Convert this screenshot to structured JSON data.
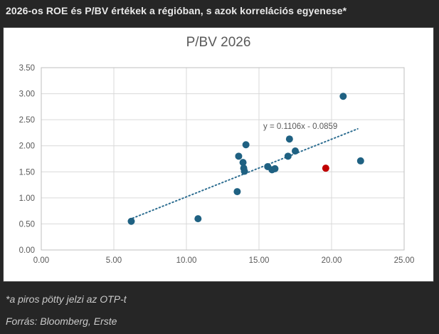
{
  "page": {
    "title": "2026-os ROE és P/BV értékek a régióban, s azok korrelációs egyenese*",
    "footnote": "*a piros pötty jelzi az OTP-t",
    "source": "Forrás: Bloomberg, Erste"
  },
  "colors": {
    "background": "#262626",
    "card": "#ffffff",
    "chart_text": "#595959",
    "gridline": "#d9d9d9",
    "plot_border": "#bfbfbf",
    "point_blue": "#1f6182",
    "trendline_blue": "#2e6e91",
    "point_red": "#c00000"
  },
  "chart_data": {
    "type": "scatter",
    "title": "P/BV 2026",
    "xlabel": "",
    "ylabel": "",
    "xlim": [
      0,
      25
    ],
    "ylim": [
      0,
      3.5
    ],
    "x_ticks": [
      {
        "value": 0,
        "label": "0.00"
      },
      {
        "value": 5,
        "label": "5.00"
      },
      {
        "value": 10,
        "label": "10.00"
      },
      {
        "value": 15,
        "label": "15.00"
      },
      {
        "value": 20,
        "label": "20.00"
      },
      {
        "value": 25,
        "label": "25.00"
      }
    ],
    "y_ticks": [
      {
        "value": 0,
        "label": "0.00"
      },
      {
        "value": 0.5,
        "label": "0.50"
      },
      {
        "value": 1,
        "label": "1.00"
      },
      {
        "value": 1.5,
        "label": "1.50"
      },
      {
        "value": 2,
        "label": "2.00"
      },
      {
        "value": 2.5,
        "label": "2.50"
      },
      {
        "value": 3,
        "label": "3.00"
      },
      {
        "value": 3.5,
        "label": "3.50"
      }
    ],
    "grid": true,
    "legend": "none",
    "points": [
      [
        6.2,
        0.55
      ],
      [
        10.8,
        0.6
      ],
      [
        13.5,
        1.12
      ],
      [
        13.6,
        1.8
      ],
      [
        13.9,
        1.68
      ],
      [
        13.95,
        1.57
      ],
      [
        14.0,
        1.51
      ],
      [
        14.1,
        2.02
      ],
      [
        15.6,
        1.6
      ],
      [
        15.9,
        1.54
      ],
      [
        16.1,
        1.56
      ],
      [
        17.0,
        1.8
      ],
      [
        17.1,
        2.13
      ],
      [
        17.5,
        1.9
      ],
      [
        20.8,
        2.95
      ],
      [
        22.0,
        1.71
      ]
    ],
    "otp_point": [
      19.6,
      1.57
    ],
    "trendline": {
      "label": "y = 0.1106x - 0.0859",
      "slope": 0.1106,
      "intercept": -0.0859,
      "x_start": 6.3,
      "x_end": 21.8
    }
  }
}
